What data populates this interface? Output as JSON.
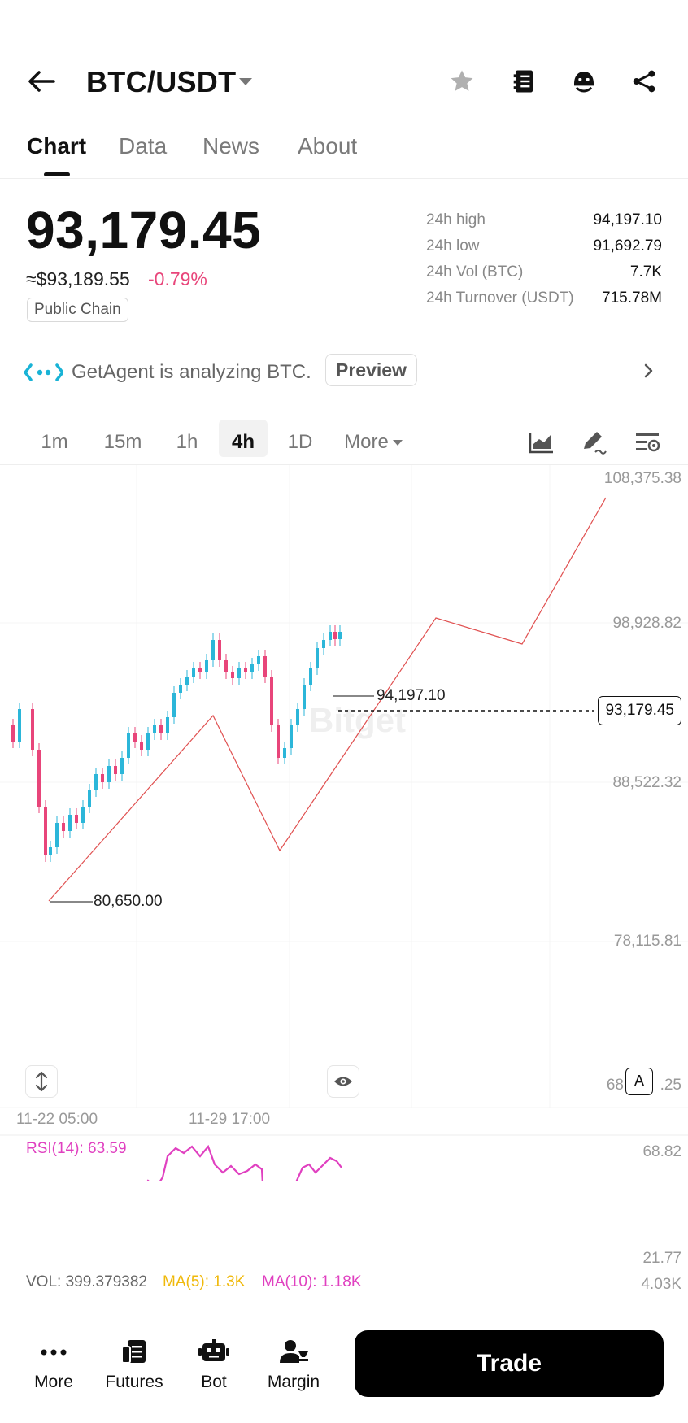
{
  "header": {
    "pair": "BTC/USDT",
    "icons": [
      "back-arrow-icon",
      "chevron-down-icon",
      "star-icon",
      "notebook-icon",
      "agent-bot-icon",
      "share-icon"
    ]
  },
  "tabs": [
    {
      "label": "Chart",
      "active": true
    },
    {
      "label": "Data",
      "active": false
    },
    {
      "label": "News",
      "active": false
    },
    {
      "label": "About",
      "active": false
    }
  ],
  "ticker": {
    "last_price": "93,179.45",
    "usd_price": "≈$93,189.55",
    "change_pct": "-0.79%",
    "badge": "Public Chain",
    "stats": [
      {
        "label": "24h high",
        "value": "94,197.10"
      },
      {
        "label": "24h low",
        "value": "91,692.79"
      },
      {
        "label": "24h Vol (BTC)",
        "value": "7.7K"
      },
      {
        "label": "24h Turnover (USDT)",
        "value": "715.78M"
      }
    ]
  },
  "agent": {
    "text": "GetAgent is analyzing BTC.",
    "button": "Preview"
  },
  "intervals": [
    {
      "label": "1m",
      "active": false
    },
    {
      "label": "15m",
      "active": false
    },
    {
      "label": "1h",
      "active": false
    },
    {
      "label": "4h",
      "active": true
    },
    {
      "label": "1D",
      "active": false
    },
    {
      "label": "More",
      "active": false
    }
  ],
  "chart": {
    "y_axis": [
      "108,375.38",
      "98,928.82",
      "88,522.32",
      "78,115.81",
      "68,709.25"
    ],
    "y_axis_visible_tail": ".25",
    "y_axis_visible_head": "68",
    "x_axis": [
      "11-22 05:00",
      "11-29 17:00"
    ],
    "last_price_tag": "93,179.45",
    "high_annotation": "94,197.10",
    "low_annotation": "80,650.00",
    "watermark": "Bitget",
    "auto_scale_label": "A",
    "rsi": {
      "label": "RSI(14): 63.59",
      "upper": "68.82",
      "lower": "21.77"
    },
    "volume": {
      "vol_label": "VOL: 399.379382",
      "ma5_label": "MA(5): 1.3K",
      "ma10_label": "MA(10): 1.18K",
      "max": "4.03K"
    },
    "colors": {
      "up": "#2bb6d9",
      "down": "#e8457a",
      "rsi": "#e040c0",
      "ma5": "#f0b90b",
      "ma10": "#e040c0",
      "drawing": "#e05050"
    }
  },
  "bottom_nav": {
    "items": [
      {
        "label": "More",
        "icon": "more-dots-icon"
      },
      {
        "label": "Futures",
        "icon": "futures-icon"
      },
      {
        "label": "Bot",
        "icon": "bot-icon"
      },
      {
        "label": "Margin",
        "icon": "margin-icon"
      }
    ],
    "trade_label": "Trade"
  }
}
